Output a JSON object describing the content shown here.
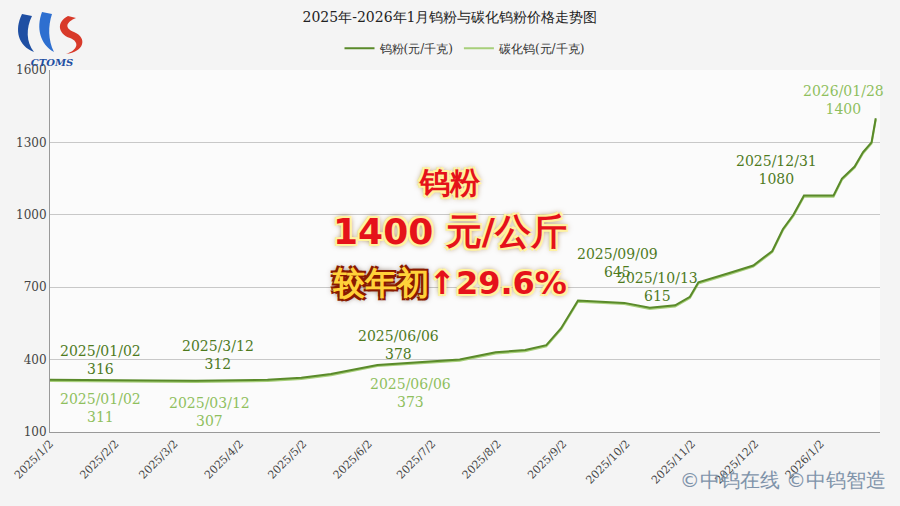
{
  "chart_data": {
    "type": "line",
    "title": "2025年-2026年1月钨粉与碳化钨粉价格走势图",
    "x": [
      "2025-01-02",
      "2025-01-15",
      "2025-02-05",
      "2025-02-20",
      "2025-03-12",
      "2025-04-01",
      "2025-04-15",
      "2025-05-01",
      "2025-05-15",
      "2025-06-06",
      "2025-06-20",
      "2025-07-01",
      "2025-07-15",
      "2025-08-01",
      "2025-08-15",
      "2025-08-25",
      "2025-09-01",
      "2025-09-09",
      "2025-09-20",
      "2025-10-01",
      "2025-10-13",
      "2025-10-25",
      "2025-11-01",
      "2025-11-05",
      "2025-11-20",
      "2025-12-01",
      "2025-12-10",
      "2025-12-15",
      "2025-12-20",
      "2025-12-25",
      "2025-12-31",
      "2026-01-08",
      "2026-01-12",
      "2026-01-18",
      "2026-01-22",
      "2026-01-26",
      "2026-01-28"
    ],
    "series": [
      {
        "name": "钨粉(元/千克)",
        "color": "#5a8a2a",
        "values": [
          316,
          316,
          314,
          313,
          312,
          313,
          316,
          325,
          340,
          378,
          385,
          390,
          400,
          430,
          440,
          460,
          530,
          645,
          640,
          635,
          615,
          625,
          660,
          720,
          760,
          790,
          850,
          940,
          1000,
          1080,
          1080,
          1080,
          1150,
          1200,
          1260,
          1300,
          1400
        ]
      },
      {
        "name": "碳化钨(元/千克)",
        "color": "#a7cf7a",
        "values": [
          311,
          311,
          309,
          308,
          307,
          308,
          311,
          320,
          335,
          373,
          380,
          385,
          395,
          425,
          435,
          455,
          525,
          640,
          635,
          630,
          610,
          620,
          655,
          715,
          755,
          785,
          845,
          935,
          995,
          1075,
          1075,
          1075,
          1145,
          1195,
          1255,
          1295,
          1395
        ]
      }
    ],
    "xlim": [
      "2025-01-02",
      "2026-01-30"
    ],
    "xticks": [
      {
        "value": "2025-01-02",
        "label": "2025/1/2"
      },
      {
        "value": "2025-02-02",
        "label": "2025/2/2"
      },
      {
        "value": "2025-03-02",
        "label": "2025/3/2"
      },
      {
        "value": "2025-04-02",
        "label": "2025/4/2"
      },
      {
        "value": "2025-05-02",
        "label": "2025/5/2"
      },
      {
        "value": "2025-06-02",
        "label": "2025/6/2"
      },
      {
        "value": "2025-07-02",
        "label": "2025/7/2"
      },
      {
        "value": "2025-08-02",
        "label": "2025/8/2"
      },
      {
        "value": "2025-09-02",
        "label": "2025/9/2"
      },
      {
        "value": "2025-10-02",
        "label": "2025/10/2"
      },
      {
        "value": "2025-11-02",
        "label": "2025/11/2"
      },
      {
        "value": "2025-12-02",
        "label": "2025/12/2"
      },
      {
        "value": "2026-01-02",
        "label": "2026/1/2"
      }
    ],
    "ylim": [
      100,
      1600
    ],
    "yticks": [
      100,
      400,
      700,
      1000,
      1300,
      1600
    ],
    "grid": true,
    "legend": "top",
    "annotations": [
      {
        "x": "2025-01-02",
        "y": 316,
        "date": "2025/01/02",
        "color": "#4e7a1e"
      },
      {
        "x": "2025-03-12",
        "y": 312,
        "date": "2025/3/12",
        "color": "#4e7a1e"
      },
      {
        "x": "2025-06-06",
        "y": 378,
        "date": "2025/06/06",
        "color": "#4e7a1e"
      },
      {
        "x": "2025-09-09",
        "y": 645,
        "date": "2025/09/09",
        "color": "#4e7a1e"
      },
      {
        "x": "2025-10-13",
        "y": 615,
        "date": "2025/10/13",
        "color": "#4e7a1e"
      },
      {
        "x": "2025-12-31",
        "y": 1080,
        "date": "2025/12/31",
        "color": "#4e7a1e"
      },
      {
        "x": "2026-01-28",
        "y": 1400,
        "date": "2026/01/28",
        "color": "#8fbf5e"
      },
      {
        "x": "2025-01-02",
        "y": 311,
        "date": "2025/01/02",
        "color": "#8fbf5e"
      },
      {
        "x": "2025-03-12",
        "y": 307,
        "date": "2025/03/12",
        "color": "#8fbf5e"
      },
      {
        "x": "2025-06-06",
        "y": 373,
        "date": "2025/06/06",
        "color": "#8fbf5e"
      }
    ]
  },
  "headline": {
    "product": "钨粉",
    "price": "1400 元/公斤",
    "change_label": "较年初",
    "change": "↑29.6%"
  },
  "logo": "CTOMS",
  "watermark": "©中钨在线 ©中钨智造"
}
